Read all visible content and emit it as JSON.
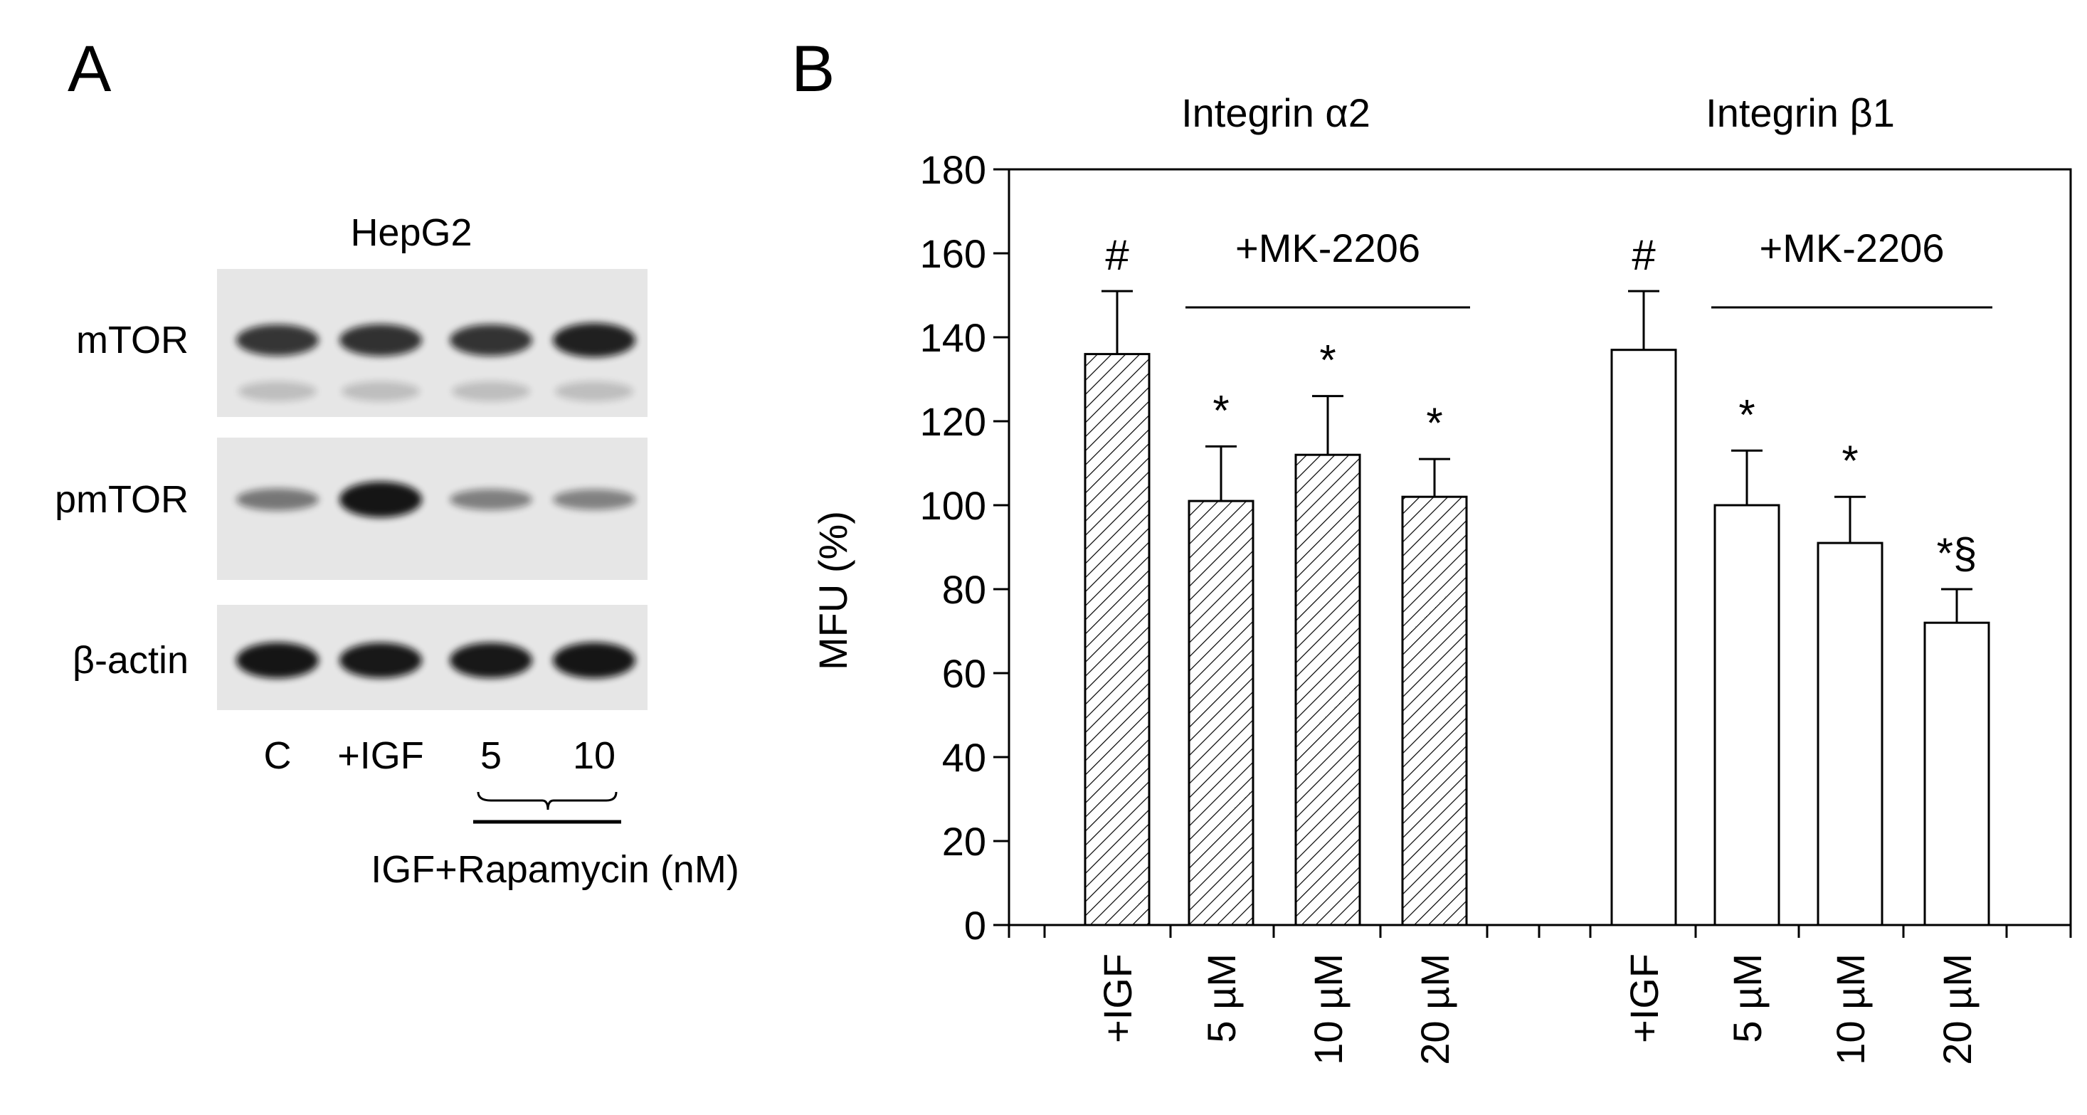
{
  "colors": {
    "ink": "#000000",
    "background": "#ffffff",
    "blot_background": "#e6e6e6",
    "band": "#111111"
  },
  "panel_a": {
    "letter": "A",
    "cell_line": "HepG2",
    "blots": [
      {
        "label": "mTOR",
        "band_intensity": [
          0.75,
          0.78,
          0.76,
          0.88
        ]
      },
      {
        "label": "pmTOR",
        "band_intensity": [
          0.35,
          0.95,
          0.3,
          0.28
        ]
      },
      {
        "label": "β-actin",
        "band_intensity": [
          0.95,
          0.93,
          0.93,
          0.95
        ]
      }
    ],
    "lanes": [
      "C",
      "+IGF",
      "5",
      "10"
    ],
    "treatment_label": "IGF+Rapamycin (nM)"
  },
  "chart_data": {
    "type": "bar",
    "letter": "B",
    "ylabel": "MFU (%)",
    "ylim": [
      0,
      180
    ],
    "yticks": [
      "0",
      "20",
      "40",
      "60",
      "80",
      "100",
      "120",
      "140",
      "160",
      "180"
    ],
    "groups": [
      {
        "name": "Integrin α2",
        "bracket_label": "+MK-2206",
        "fill": "hatched",
        "bars": [
          {
            "category": "+IGF",
            "value": 136,
            "error": 15,
            "annotation": "#"
          },
          {
            "category": "5 µM",
            "value": 101,
            "error": 13,
            "annotation": "*"
          },
          {
            "category": "10 µM",
            "value": 112,
            "error": 14,
            "annotation": "*"
          },
          {
            "category": "20 µM",
            "value": 102,
            "error": 9,
            "annotation": "*"
          }
        ]
      },
      {
        "name": "Integrin β1",
        "bracket_label": "+MK-2206",
        "fill": "white",
        "bars": [
          {
            "category": "+IGF",
            "value": 137,
            "error": 14,
            "annotation": "#"
          },
          {
            "category": "5 µM",
            "value": 100,
            "error": 13,
            "annotation": "*"
          },
          {
            "category": "10 µM",
            "value": 91,
            "error": 11,
            "annotation": "*"
          },
          {
            "category": "20 µM",
            "value": 72,
            "error": 8,
            "annotation": "*§"
          }
        ]
      }
    ]
  }
}
